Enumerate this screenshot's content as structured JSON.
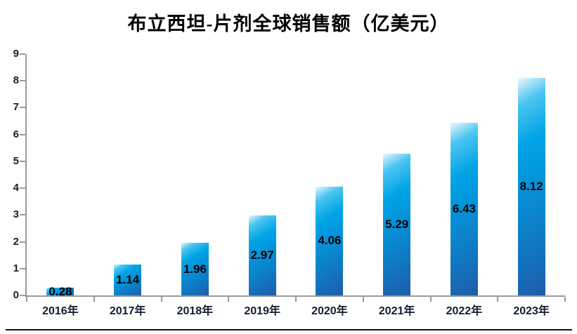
{
  "chart_data": {
    "type": "bar",
    "title": "布立西坦-片剂全球销售额（亿美元）",
    "categories": [
      "2016年",
      "2017年",
      "2018年",
      "2019年",
      "2020年",
      "2021年",
      "2022年",
      "2023年"
    ],
    "values": [
      0.28,
      1.14,
      1.96,
      2.97,
      4.06,
      5.29,
      6.43,
      8.12
    ],
    "data_labels": [
      "0.28",
      "1.14",
      "1.96",
      "2.97",
      "4.06",
      "5.29",
      "6.43",
      "8.12"
    ],
    "xlabel": "",
    "ylabel": "",
    "ylim": [
      0,
      9
    ],
    "yticks": [
      0,
      1,
      2,
      3,
      4,
      5,
      6,
      7,
      8,
      9
    ],
    "grid": false,
    "legend_position": "none",
    "colors": {
      "title": "#000000",
      "axis_line": "#9a9a9a",
      "tick_label": "#131c30",
      "data_label": "#000000",
      "bar_gradient": [
        "#eaf7fe",
        "#4cc5f1",
        "#00a4e6",
        "#0a86ce",
        "#1d5dab"
      ],
      "bottom_rule": "#0c1420",
      "background": "#ffffff"
    }
  }
}
